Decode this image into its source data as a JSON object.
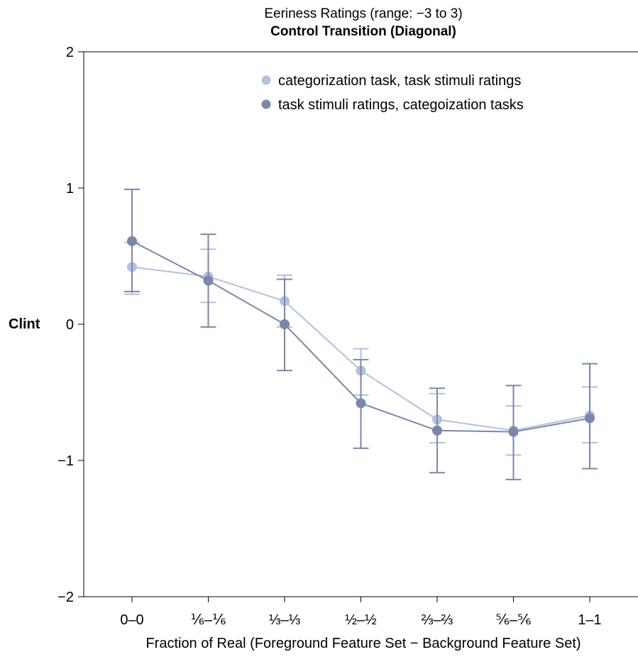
{
  "chart_data": {
    "type": "line",
    "title": "Eeriness Ratings (range: −3 to 3)",
    "subtitle": "Control Transition (Diagonal)",
    "xlabel": "Fraction of Real (Foreground Feature Set − Background Feature Set)",
    "ylabel": "Clint",
    "ylim": [
      -2,
      2
    ],
    "yticks": [
      2,
      1,
      0,
      -1,
      -2
    ],
    "ytick_labels": [
      "2",
      "1",
      "0",
      "−1",
      "−2"
    ],
    "categories": [
      "0–0",
      "⅙–⅙",
      "⅓–⅓",
      "½–½",
      "⅔–⅔",
      "⅚–⅚",
      "1–1"
    ],
    "grid": false,
    "legend_position": "top-right",
    "series": [
      {
        "name": "categorization task, task stimuli ratings",
        "color": "#b3c0de",
        "values": [
          0.42,
          0.35,
          0.17,
          -0.34,
          -0.7,
          -0.78,
          -0.67
        ],
        "err_low": [
          0.22,
          0.16,
          -0.02,
          -0.52,
          -0.87,
          -0.96,
          -0.87
        ],
        "err_high": [
          0.6,
          0.55,
          0.36,
          -0.18,
          -0.51,
          -0.6,
          -0.46
        ]
      },
      {
        "name": "task stimuli ratings, categoization tasks",
        "color": "#7a87aa",
        "values": [
          0.61,
          0.32,
          0.0,
          -0.58,
          -0.78,
          -0.79,
          -0.69
        ],
        "err_low": [
          0.24,
          -0.02,
          -0.34,
          -0.91,
          -1.09,
          -1.14,
          -1.06
        ],
        "err_high": [
          0.99,
          0.66,
          0.33,
          -0.26,
          -0.47,
          -0.45,
          -0.29
        ]
      }
    ]
  }
}
